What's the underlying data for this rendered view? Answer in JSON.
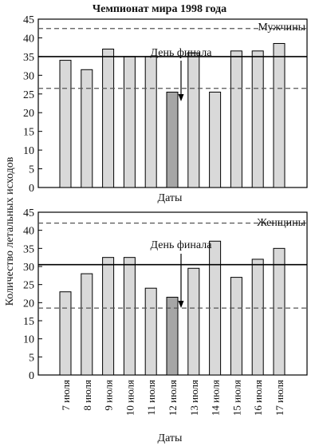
{
  "chart_data": {
    "type": "bar",
    "title": "Чемпионат мира 1998 года",
    "ylabel": "Количество летальных исходов",
    "xlabel": "Даты",
    "ylim": [
      0,
      45
    ],
    "yticks": [
      0,
      5,
      10,
      15,
      20,
      25,
      30,
      35,
      40,
      45
    ],
    "categories": [
      "7 июля",
      "8 июля",
      "9 июля",
      "10 июля",
      "11 июля",
      "12 июля",
      "13 июля",
      "14 июля",
      "15 июля",
      "16 июля",
      "17 июля"
    ],
    "highlight_category": "12 июля",
    "annotation": "День финала",
    "grid": false,
    "colors": {
      "bar": "#d9d9d9",
      "bar_highlight": "#a6a6a6",
      "line": "#000000",
      "dashed_line": "#555555"
    },
    "panels": [
      {
        "name": "Мужчины",
        "x_axis_label": "Даты",
        "values": [
          34,
          31.5,
          37,
          35,
          35,
          25.5,
          36,
          25.5,
          36.5,
          36.5,
          38.5
        ],
        "mean_line": 35,
        "dashed_lines": [
          42.5,
          26.5
        ]
      },
      {
        "name": "Женщины",
        "x_axis_label": "Даты",
        "values": [
          23,
          28,
          32.5,
          32.5,
          24,
          21.5,
          29.5,
          37,
          27,
          32,
          35
        ],
        "mean_line": 30.5,
        "dashed_lines": [
          42,
          18.5
        ]
      }
    ]
  }
}
